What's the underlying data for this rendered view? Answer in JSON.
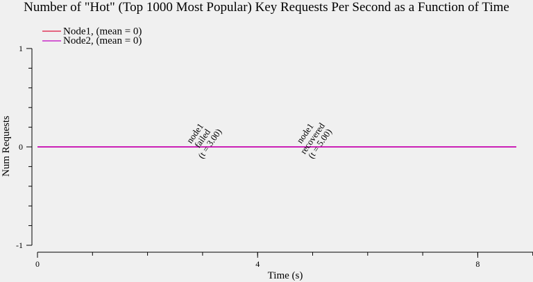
{
  "chart_data": {
    "type": "line",
    "title": "Number of \"Hot\" (Top 1000 Most Popular) Key Requests Per Second as a Function of Time",
    "xlabel": "Time (s)",
    "ylabel": "Num Requests",
    "xlim": [
      0,
      9
    ],
    "ylim": [
      -1,
      1
    ],
    "x_ticks": [
      0,
      4,
      8
    ],
    "x_tick_labels": [
      "0",
      "4",
      "8"
    ],
    "x_minor_step": 1,
    "y_ticks": [
      -1,
      0,
      1
    ],
    "y_tick_labels": [
      "-1",
      "0",
      "1"
    ],
    "y_minor_step": 0.2,
    "legend_position": "top-left",
    "series": [
      {
        "name": "Node1, (mean = 0)",
        "color": "#dc143c",
        "x": [
          0,
          8.7
        ],
        "y": [
          0,
          0
        ]
      },
      {
        "name": "Node2, (mean = 0)",
        "color": "#c000c0",
        "x": [
          0,
          8.7
        ],
        "y": [
          0,
          0
        ]
      }
    ],
    "annotations": [
      {
        "x": 3.0,
        "y": 0,
        "lines": [
          "node1",
          "failed",
          "(t = 3.00)"
        ],
        "color": "#ee3f9b"
      },
      {
        "x": 5.0,
        "y": 0,
        "lines": [
          "node1",
          "recovered",
          "(t = 5.00)"
        ],
        "color": "#ee3f9b"
      }
    ]
  }
}
